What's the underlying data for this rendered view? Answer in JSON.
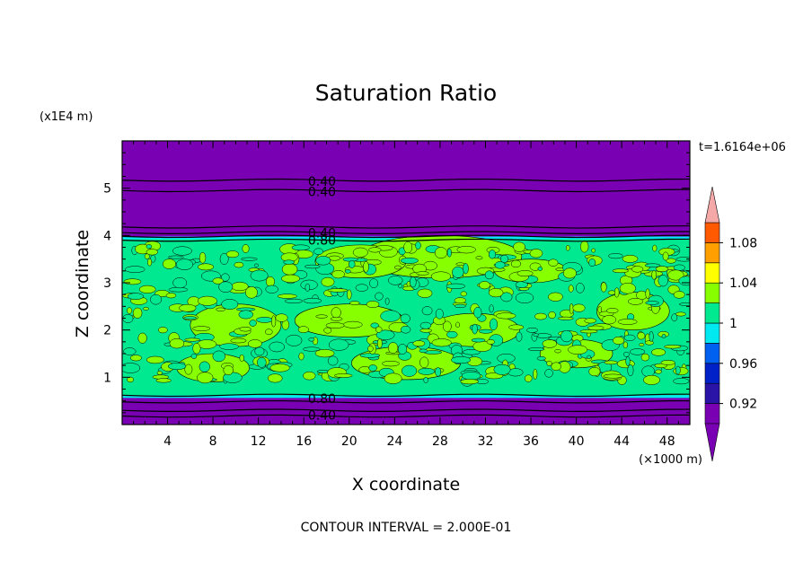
{
  "chart_data": {
    "type": "contour",
    "title": "Saturation Ratio",
    "xlabel": "X coordinate",
    "ylabel": "Z coordinate",
    "x_unit": "(×1000 m)",
    "y_unit": "(x1E4 m)",
    "time_label": "t=1.6164e+06",
    "footer": "CONTOUR INTERVAL = 2.000E-01",
    "xlim": [
      0,
      50
    ],
    "ylim": [
      0,
      6
    ],
    "x_ticks": [
      "4",
      "8",
      "12",
      "16",
      "20",
      "24",
      "28",
      "32",
      "36",
      "40",
      "44",
      "48"
    ],
    "y_ticks": [
      "1",
      "2",
      "3",
      "4",
      "5"
    ],
    "contour_labels": [
      {
        "text": "0.40",
        "x": 17.6,
        "z": 5.15
      },
      {
        "text": "0.40",
        "x": 17.6,
        "z": 4.93
      },
      {
        "text": "0.40",
        "x": 17.6,
        "z": 4.05
      },
      {
        "text": "0.80",
        "x": 17.6,
        "z": 3.9
      },
      {
        "text": "0.80",
        "x": 17.6,
        "z": 0.55
      },
      {
        "text": "0.40",
        "x": 17.6,
        "z": 0.2
      }
    ],
    "colorbar": {
      "labels": [
        "1.08",
        "1.04",
        "1",
        "0.96",
        "0.92"
      ],
      "levels": [
        0.9,
        0.92,
        0.94,
        0.96,
        0.98,
        1.0,
        1.02,
        1.04,
        1.06,
        1.08,
        1.1
      ],
      "colors": [
        "#7a00b4",
        "#2a14a8",
        "#0020c8",
        "#0060f0",
        "#00e8f0",
        "#00e890",
        "#88ff00",
        "#ffff00",
        "#ffa000",
        "#ff5a00",
        "#ff1e1e"
      ],
      "over_color": "#f4a8a8",
      "under_color": "#7a00b4"
    },
    "colors": {
      "dry": "#7a00b4",
      "moist_low": "#00e890",
      "moist_high": "#88ff00",
      "edge": "#00e8f0",
      "line": "#000000"
    }
  }
}
